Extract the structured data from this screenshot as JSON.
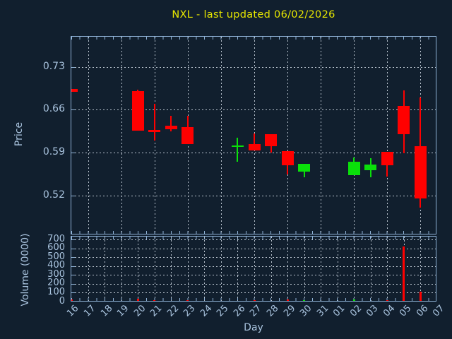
{
  "chart_data": {
    "type": "candlestick",
    "title": "NXL - last updated 06/02/2026",
    "xlabel": "Day",
    "price_axis_label": "Price",
    "volume_axis_label": "Volume (0000)",
    "x_labels": [
      "16",
      "17",
      "18",
      "19",
      "20",
      "21",
      "22",
      "23",
      "24",
      "25",
      "26",
      "27",
      "28",
      "29",
      "30",
      "31",
      "01",
      "02",
      "03",
      "04",
      "05",
      "06",
      "07"
    ],
    "price_ticks": [
      "0.73",
      "0.66",
      "0.59",
      "0.52"
    ],
    "volume_ticks": [
      "700",
      "600",
      "500",
      "400",
      "300",
      "200",
      "100",
      "0"
    ],
    "price_axis_visible_range": [
      0.455,
      0.78
    ],
    "volume_axis_visible_range": [
      0,
      730
    ],
    "grid": true,
    "legend_position": "none",
    "candles": [
      {
        "day": "16",
        "open": 0.694,
        "high": 0.694,
        "low": 0.689,
        "close": 0.689,
        "volume": 25
      },
      {
        "day": "20",
        "open": 0.69,
        "high": 0.693,
        "low": 0.626,
        "close": 0.626,
        "volume": 35
      },
      {
        "day": "21",
        "open": 0.627,
        "high": 0.67,
        "low": 0.61,
        "close": 0.623,
        "volume": 15
      },
      {
        "day": "22",
        "open": 0.634,
        "high": 0.65,
        "low": 0.625,
        "close": 0.628,
        "volume": 8
      },
      {
        "day": "23",
        "open": 0.631,
        "high": 0.65,
        "low": 0.604,
        "close": 0.604,
        "volume": 12
      },
      {
        "day": "26",
        "open": 0.6,
        "high": 0.614,
        "low": 0.575,
        "close": 0.602,
        "volume": 10
      },
      {
        "day": "27",
        "open": 0.604,
        "high": 0.621,
        "low": 0.594,
        "close": 0.594,
        "volume": 12
      },
      {
        "day": "28",
        "open": 0.62,
        "high": 0.62,
        "low": 0.59,
        "close": 0.6,
        "volume": 10
      },
      {
        "day": "29",
        "open": 0.592,
        "high": 0.592,
        "low": 0.554,
        "close": 0.569,
        "volume": 20
      },
      {
        "day": "30",
        "open": 0.559,
        "high": 0.571,
        "low": 0.55,
        "close": 0.571,
        "volume": 12
      },
      {
        "day": "02",
        "open": 0.553,
        "high": 0.582,
        "low": 0.553,
        "close": 0.575,
        "volume": 20
      },
      {
        "day": "03",
        "open": 0.561,
        "high": 0.581,
        "low": 0.55,
        "close": 0.57,
        "volume": 10
      },
      {
        "day": "04",
        "open": 0.591,
        "high": 0.591,
        "low": 0.551,
        "close": 0.569,
        "volume": 15
      },
      {
        "day": "05",
        "open": 0.666,
        "high": 0.691,
        "low": 0.589,
        "close": 0.62,
        "volume": 620
      },
      {
        "day": "06",
        "open": 0.6,
        "high": 0.68,
        "low": 0.5,
        "close": 0.515,
        "volume": 115
      }
    ]
  },
  "colors": {
    "background": "#111f2e",
    "axis": "#8fb2d6",
    "grid": "#b9c3ce",
    "tick_labels": "#a9c3de",
    "title": "#e6e600",
    "up_candle": "#0ae00a",
    "down_candle": "#ff0000"
  }
}
